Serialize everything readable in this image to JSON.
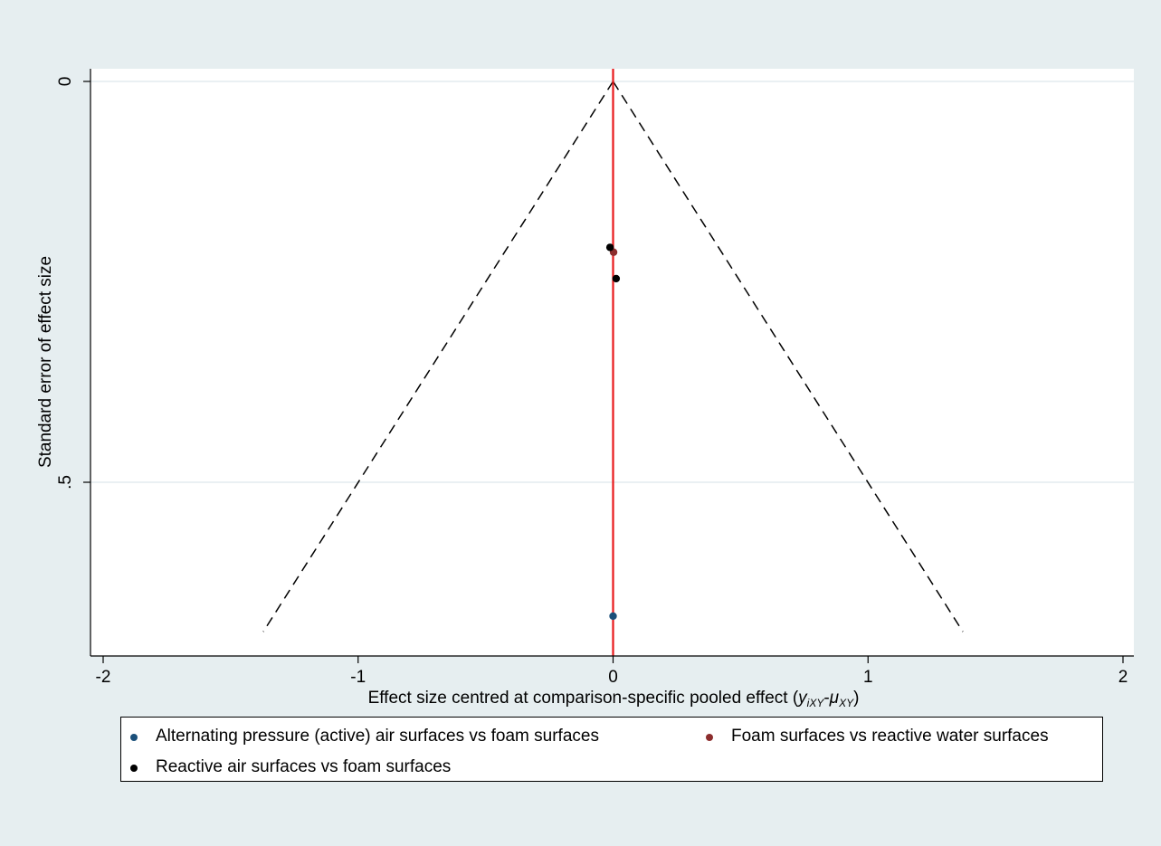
{
  "chart_data": {
    "type": "scatter",
    "title": "",
    "xlabel": "Effect size centred at comparison-specific pooled effect",
    "xlabel_math": {
      "y": "y",
      "y_sub": "iXY",
      "sep": "-",
      "mu": "μ",
      "mu_sub": "XY",
      "close": ")",
      "open": "("
    },
    "ylabel": "Standard error of effect size",
    "xlim": [
      -2,
      2
    ],
    "ylim": [
      0,
      0.7
    ],
    "y_reversed": true,
    "x_ticks": [
      -2,
      -1,
      0,
      1,
      2
    ],
    "x_tick_labels": [
      "-2",
      "-1",
      "0",
      "1",
      "2"
    ],
    "y_ticks": [
      0,
      0.5
    ],
    "y_tick_labels": [
      "0",
      ".5"
    ],
    "grid": "horizontal",
    "reference_line": {
      "x": 0,
      "color": "#e8191b"
    },
    "funnel": {
      "apex_x": 0,
      "apex_y": 0,
      "bottom_y": 0.7,
      "half_width_at_bottom": 1.372
    },
    "series": [
      {
        "name": "Alternating pressure (active) air surfaces vs foam surfaces",
        "color": "#1a4f7a",
        "points": [
          {
            "x": 0.0,
            "y": 0.667
          }
        ]
      },
      {
        "name": "Foam surfaces vs reactive water surfaces",
        "color": "#8c2d2d",
        "points": [
          {
            "x": 0.002,
            "y": 0.213
          }
        ]
      },
      {
        "name": "Reactive air surfaces vs foam surfaces",
        "color": "#000000",
        "points": [
          {
            "x": -0.012,
            "y": 0.207
          },
          {
            "x": 0.012,
            "y": 0.246
          }
        ]
      }
    ],
    "legend": {
      "position": "bottom",
      "columns": 2
    }
  }
}
